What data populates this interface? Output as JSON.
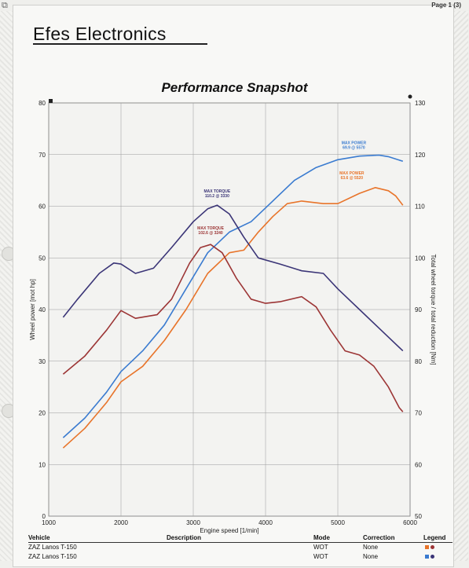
{
  "header": {
    "company": "Efes Electronics",
    "page_label": "Page 1 (3)",
    "title": "Performance Snapshot"
  },
  "colors": {
    "power_blue": "#3a7bd0",
    "power_orange": "#e8742a",
    "torque_navy": "#3b3577",
    "torque_red": "#9c3535",
    "grid": "#9a9a9a"
  },
  "chart_data": {
    "type": "line",
    "title": "Performance Snapshot",
    "xlabel": "Engine speed [1/min]",
    "ylabel_left": "Wheel power [mot hp]",
    "ylabel_right": "Total wheel torque / total reduction [Nm]",
    "xlim": [
      1000,
      6000
    ],
    "ylim_left": [
      0,
      80
    ],
    "ylim_right": [
      50,
      130
    ],
    "grid": true,
    "x_ticks": [
      "1000",
      "2000",
      "3000",
      "4000",
      "5000",
      "6000"
    ],
    "y_left_ticks": [
      "0",
      "10",
      "20",
      "30",
      "40",
      "50",
      "60",
      "70",
      "80"
    ],
    "y_right_ticks": [
      "50",
      "60",
      "70",
      "80",
      "90",
      "100",
      "110",
      "120",
      "130"
    ],
    "series": [
      {
        "axis": "left",
        "color": "#3a7bd0",
        "points": [
          [
            1200,
            15.2
          ],
          [
            1500,
            19
          ],
          [
            1800,
            24
          ],
          [
            2000,
            28
          ],
          [
            2300,
            32
          ],
          [
            2600,
            37
          ],
          [
            2900,
            44
          ],
          [
            3200,
            51
          ],
          [
            3500,
            55
          ],
          [
            3800,
            57
          ],
          [
            4100,
            61
          ],
          [
            4400,
            65
          ],
          [
            4700,
            67.5
          ],
          [
            5000,
            69
          ],
          [
            5300,
            69.7
          ],
          [
            5570,
            69.9
          ],
          [
            5700,
            69.6
          ],
          [
            5900,
            68.7
          ]
        ]
      },
      {
        "axis": "left",
        "color": "#e8742a",
        "points": [
          [
            1200,
            13.2
          ],
          [
            1500,
            17
          ],
          [
            1800,
            22
          ],
          [
            2000,
            26
          ],
          [
            2300,
            29
          ],
          [
            2600,
            34
          ],
          [
            2900,
            40
          ],
          [
            3200,
            47
          ],
          [
            3500,
            51
          ],
          [
            3700,
            51.5
          ],
          [
            3900,
            55
          ],
          [
            4100,
            58
          ],
          [
            4300,
            60.5
          ],
          [
            4500,
            61
          ],
          [
            4800,
            60.5
          ],
          [
            5000,
            60.5
          ],
          [
            5300,
            62.5
          ],
          [
            5520,
            63.6
          ],
          [
            5700,
            63
          ],
          [
            5800,
            62
          ],
          [
            5900,
            60.2
          ]
        ]
      },
      {
        "axis": "right",
        "color": "#3b3577",
        "points": [
          [
            1200,
            88.5
          ],
          [
            1400,
            92
          ],
          [
            1700,
            97
          ],
          [
            1900,
            99
          ],
          [
            2000,
            98.8
          ],
          [
            2200,
            97
          ],
          [
            2450,
            98
          ],
          [
            2700,
            102
          ],
          [
            3000,
            107
          ],
          [
            3200,
            109.5
          ],
          [
            3330,
            110.2
          ],
          [
            3500,
            108.5
          ],
          [
            3700,
            104
          ],
          [
            3900,
            100
          ],
          [
            4200,
            98.8
          ],
          [
            4500,
            97.5
          ],
          [
            4800,
            97
          ],
          [
            5000,
            94
          ],
          [
            5300,
            90
          ],
          [
            5600,
            86
          ],
          [
            5900,
            82
          ]
        ]
      },
      {
        "axis": "right",
        "color": "#9c3535",
        "points": [
          [
            1200,
            77.5
          ],
          [
            1500,
            81
          ],
          [
            1800,
            86
          ],
          [
            2000,
            89.8
          ],
          [
            2200,
            88.3
          ],
          [
            2500,
            89
          ],
          [
            2700,
            92
          ],
          [
            2950,
            99
          ],
          [
            3100,
            102
          ],
          [
            3240,
            102.6
          ],
          [
            3400,
            101
          ],
          [
            3600,
            96
          ],
          [
            3800,
            92
          ],
          [
            4000,
            91.2
          ],
          [
            4200,
            91.5
          ],
          [
            4500,
            92.5
          ],
          [
            4700,
            90.5
          ],
          [
            4900,
            86
          ],
          [
            5100,
            82
          ],
          [
            5300,
            81.2
          ],
          [
            5500,
            79
          ],
          [
            5700,
            75
          ],
          [
            5850,
            71
          ],
          [
            5900,
            70.2
          ]
        ]
      }
    ],
    "annotations": [
      {
        "label": "MAX POWER",
        "value": "69.9 @ 5570",
        "color": "#3a7bd0"
      },
      {
        "label": "MAX POWER",
        "value": "63.6 @ 5520",
        "color": "#e8742a"
      },
      {
        "label": "MAX TORQUE",
        "value": "110.2 @ 3330",
        "color": "#3b3577"
      },
      {
        "label": "MAX TORQUE",
        "value": "102.6 @ 3240",
        "color": "#9c3535"
      }
    ]
  },
  "table": {
    "headers": {
      "vehicle": "Vehicle",
      "description": "Description",
      "mode": "Mode",
      "correction": "Correction",
      "legend": "Legend"
    },
    "rows": [
      {
        "vehicle": "ZAZ Lanos T-150",
        "description": "",
        "mode": "WOT",
        "correction": "None",
        "legend_colors": [
          "#e8742a",
          "#9c3535"
        ]
      },
      {
        "vehicle": "ZAZ Lanos T-150",
        "description": "",
        "mode": "WOT",
        "correction": "None",
        "legend_colors": [
          "#3a7bd0",
          "#3b3577"
        ]
      }
    ]
  }
}
